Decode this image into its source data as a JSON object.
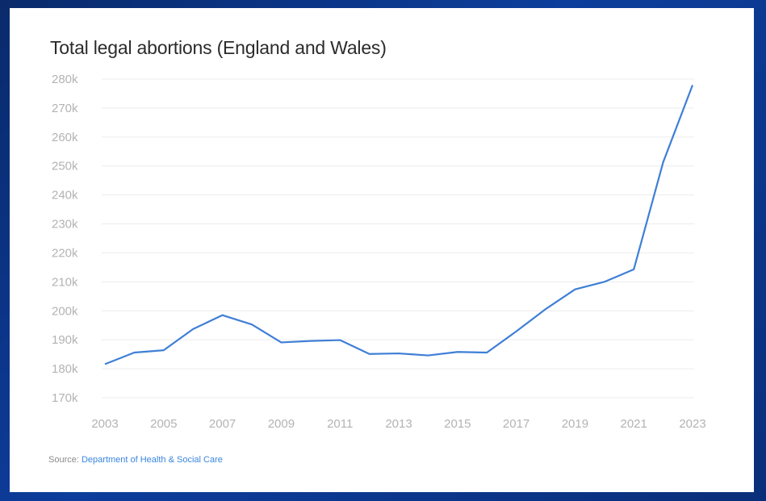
{
  "chart_data": {
    "type": "line",
    "title": "Total legal abortions (England and Wales)",
    "xlabel": "",
    "ylabel": "",
    "x": [
      2003,
      2004,
      2005,
      2006,
      2007,
      2008,
      2009,
      2010,
      2011,
      2012,
      2013,
      2014,
      2015,
      2016,
      2017,
      2018,
      2019,
      2020,
      2021,
      2022,
      2023
    ],
    "series": [
      {
        "name": "Total legal abortions",
        "values": [
          181.6,
          185.6,
          186.4,
          193.7,
          198.5,
          195.3,
          189.1,
          189.6,
          189.9,
          185.1,
          185.3,
          184.6,
          185.8,
          185.6,
          192.9,
          200.6,
          207.4,
          210.0,
          214.3,
          251.3,
          277.9
        ]
      }
    ],
    "ylim": [
      170,
      280
    ],
    "yticks": [
      "170k",
      "180k",
      "190k",
      "200k",
      "210k",
      "220k",
      "230k",
      "240k",
      "250k",
      "260k",
      "270k",
      "280k"
    ],
    "xticks": [
      "2003",
      "2005",
      "2007",
      "2009",
      "2011",
      "2013",
      "2015",
      "2017",
      "2019",
      "2021",
      "2023"
    ],
    "grid": true,
    "line_color": "#3f7fd6"
  },
  "source": {
    "prefix": "Source:",
    "link_text": "Department of Health & Social Care"
  }
}
